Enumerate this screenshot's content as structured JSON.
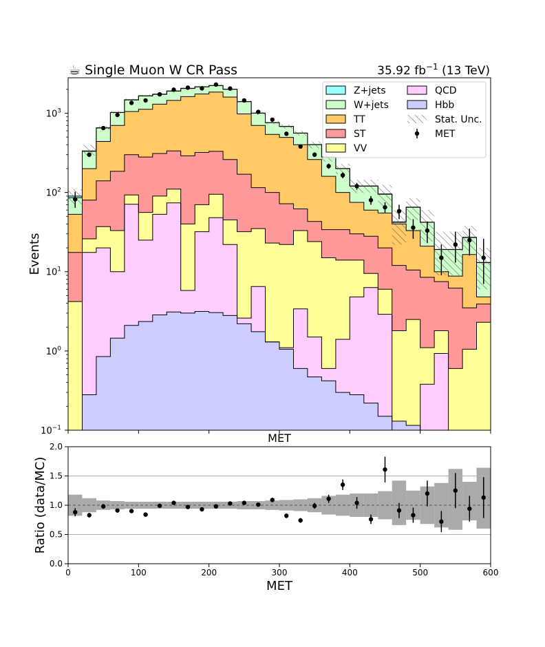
{
  "chart_data": [
    {
      "type": "area",
      "title_left": "☕ Single Muon W CR Pass",
      "title_right_prefix": "35.92 fb",
      "title_right_sup": "−1",
      "title_right_suffix": " (13 TeV)",
      "xlabel": "MET",
      "ylabel": "Events",
      "yscale": "log",
      "ylim": [
        0.1,
        2800
      ],
      "xlim": [
        0,
        600
      ],
      "y_tick_labels": [
        {
          "mantissa": "10",
          "exp": "−1"
        },
        {
          "mantissa": "10",
          "exp": "0"
        },
        {
          "mantissa": "10",
          "exp": "1"
        },
        {
          "mantissa": "10",
          "exp": "2"
        },
        {
          "mantissa": "10",
          "exp": "3"
        }
      ],
      "bin_edges": [
        0,
        20,
        40,
        60,
        80,
        100,
        120,
        140,
        160,
        180,
        200,
        220,
        240,
        260,
        280,
        300,
        320,
        340,
        360,
        380,
        400,
        420,
        440,
        460,
        480,
        500,
        520,
        540,
        560,
        580,
        600
      ],
      "stack_order": [
        "Hbb",
        "QCD",
        "VV",
        "ST",
        "TT",
        "W+jets",
        "Z+jets"
      ],
      "series": [
        {
          "name": "Hbb",
          "color": "#ccccff",
          "values": [
            0.1,
            0.28,
            0.85,
            1.45,
            2.1,
            2.35,
            2.85,
            3.1,
            3.0,
            3.15,
            3.05,
            2.8,
            2.2,
            1.75,
            1.3,
            1.05,
            0.6,
            0.47,
            0.42,
            0.3,
            0.28,
            0.22,
            0.15,
            0.13,
            0.115,
            0.1,
            0.1,
            0.1,
            0.1,
            0.1
          ]
        },
        {
          "name": "QCD",
          "color": "#ffccff",
          "values": [
            0.1,
            17.5,
            20,
            10,
            71,
            25,
            53,
            74,
            5.8,
            32,
            48,
            22,
            2.6,
            6.5,
            1.3,
            1.1,
            3.4,
            1.5,
            0.6,
            1.4,
            4.8,
            6.3,
            2.9,
            0.1,
            0.1,
            0.38,
            0.93,
            0.1,
            0.1,
            0.1
          ]
        },
        {
          "name": "VV",
          "color": "#ffff99",
          "values": [
            4.2,
            26,
            37,
            33,
            93,
            56,
            90,
            110,
            40,
            70,
            95,
            45,
            32,
            35,
            23,
            22,
            33,
            24,
            15,
            14,
            14,
            9.5,
            6,
            1.8,
            2.5,
            1.1,
            1.8,
            0.6,
            1.05,
            2.3
          ]
        },
        {
          "name": "ST",
          "color": "#ff9999",
          "values": [
            17.5,
            80,
            140,
            185,
            300,
            280,
            310,
            335,
            290,
            320,
            330,
            260,
            170,
            115,
            100,
            72,
            62,
            43,
            34,
            34,
            30,
            28,
            20,
            12,
            10.5,
            8.5,
            7.5,
            6.2,
            3.5,
            3.9
          ]
        },
        {
          "name": "TT",
          "color": "#ffc966",
          "values": [
            53,
            200,
            440,
            700,
            1050,
            1120,
            1300,
            1450,
            1620,
            1750,
            1850,
            1600,
            980,
            700,
            540,
            495,
            400,
            260,
            160,
            100,
            75,
            60,
            55,
            40,
            33,
            21,
            10,
            8.8,
            16.5,
            4.8
          ]
        },
        {
          "name": "W+jets",
          "color": "#ccffcc",
          "values": [
            86,
            330,
            650,
            1020,
            1470,
            1650,
            1730,
            1900,
            2050,
            2150,
            2230,
            2000,
            1400,
            1000,
            760,
            680,
            560,
            400,
            280,
            200,
            120,
            120,
            95,
            42,
            65,
            42,
            19,
            19,
            27,
            13
          ]
        },
        {
          "name": "Z+jets",
          "color": "#99ffff",
          "values": [
            90,
            335,
            655,
            1025,
            1480,
            1660,
            1740,
            1910,
            2060,
            2160,
            2240,
            2010,
            1405,
            1003,
            762,
            682,
            562,
            402,
            281,
            201,
            121,
            121,
            96,
            42.5,
            65.3,
            42.2,
            19.1,
            19.1,
            27.2,
            13.1
          ]
        }
      ],
      "uncertainty_band": {
        "name": "Stat. Unc.",
        "up": [
          110,
          400,
          690,
          1060,
          1520,
          1700,
          1780,
          1950,
          2110,
          2210,
          2290,
          2060,
          1450,
          1040,
          800,
          720,
          600,
          440,
          315,
          230,
          145,
          145,
          125,
          60,
          85,
          60,
          32,
          32,
          38,
          20
        ],
        "down": [
          70,
          290,
          620,
          990,
          1440,
          1620,
          1700,
          1870,
          2010,
          2110,
          2190,
          1960,
          1360,
          960,
          725,
          640,
          520,
          360,
          245,
          170,
          98,
          100,
          65,
          22,
          45,
          24,
          9,
          9,
          18,
          6
        ]
      },
      "data": {
        "name": "MET",
        "x": [
          10,
          30,
          50,
          70,
          90,
          110,
          130,
          150,
          170,
          190,
          210,
          230,
          250,
          270,
          290,
          310,
          330,
          350,
          370,
          390,
          410,
          430,
          450,
          470,
          490,
          510,
          530,
          550,
          570,
          590
        ],
        "y": [
          82,
          300,
          650,
          950,
          1350,
          1450,
          1730,
          1980,
          2100,
          2060,
          2300,
          2050,
          1450,
          1040,
          830,
          550,
          380,
          300,
          215,
          165,
          120,
          80,
          65,
          58,
          36,
          33,
          15,
          22,
          25,
          15
        ],
        "err_low": [
          18,
          20,
          28,
          34,
          40,
          40,
          44,
          48,
          50,
          48,
          52,
          48,
          40,
          34,
          30,
          24,
          20,
          18,
          16,
          14,
          12,
          10,
          10,
          12,
          10,
          10,
          6,
          9,
          9,
          8
        ],
        "err_high": [
          20,
          20,
          28,
          34,
          40,
          40,
          44,
          48,
          50,
          48,
          52,
          48,
          40,
          34,
          30,
          24,
          20,
          18,
          16,
          14,
          12,
          10,
          10,
          12,
          10,
          10,
          7,
          10,
          10,
          11
        ]
      },
      "legend_position": "upper-right",
      "legend_columns": [
        [
          "Z+jets",
          "W+jets",
          "TT",
          "ST",
          "VV"
        ],
        [
          "QCD",
          "Hbb",
          "Stat. Unc.",
          "MET"
        ]
      ]
    },
    {
      "type": "scatter",
      "xlabel": "MET",
      "ylabel": "Ratio (data/MC)",
      "xlim": [
        0,
        600
      ],
      "ylim": [
        0.0,
        2.0
      ],
      "x_ticks": [
        0,
        100,
        200,
        300,
        400,
        500,
        600
      ],
      "x_tick_labels": [
        "0",
        "100",
        "200",
        "300",
        "400",
        "500",
        "600"
      ],
      "y_ticks": [
        0.0,
        0.5,
        1.0,
        1.5,
        2.0
      ],
      "y_tick_labels": [
        "0.0",
        "0.5",
        "1.0",
        "1.5",
        "2.0"
      ],
      "grid_y": [
        0.5,
        1.0,
        1.5
      ],
      "reference_line": 1.0,
      "band_edges": [
        0,
        20,
        40,
        60,
        80,
        100,
        120,
        140,
        160,
        180,
        200,
        220,
        240,
        260,
        280,
        300,
        320,
        340,
        360,
        380,
        400,
        420,
        440,
        460,
        480,
        500,
        520,
        540,
        560,
        580,
        600
      ],
      "band_up": [
        1.18,
        1.12,
        1.08,
        1.07,
        1.06,
        1.06,
        1.06,
        1.06,
        1.06,
        1.06,
        1.06,
        1.06,
        1.07,
        1.07,
        1.08,
        1.09,
        1.1,
        1.12,
        1.16,
        1.18,
        1.2,
        1.2,
        1.24,
        1.42,
        1.25,
        1.32,
        1.38,
        1.62,
        1.4,
        1.64
      ],
      "band_down": [
        0.82,
        0.88,
        0.92,
        0.93,
        0.94,
        0.94,
        0.94,
        0.94,
        0.94,
        0.94,
        0.94,
        0.94,
        0.93,
        0.93,
        0.92,
        0.91,
        0.9,
        0.88,
        0.84,
        0.82,
        0.8,
        0.8,
        0.76,
        0.66,
        0.75,
        0.68,
        0.62,
        0.58,
        0.74,
        0.6
      ],
      "data": {
        "x": [
          10,
          30,
          50,
          70,
          90,
          110,
          130,
          150,
          170,
          190,
          210,
          230,
          250,
          270,
          290,
          310,
          330,
          350,
          370,
          390,
          410,
          430,
          450,
          470,
          490,
          510,
          530,
          550,
          570,
          590
        ],
        "y": [
          0.88,
          0.83,
          0.98,
          0.91,
          0.9,
          0.84,
          0.99,
          1.04,
          0.97,
          0.93,
          0.98,
          1.03,
          1.04,
          1.01,
          1.09,
          0.82,
          0.74,
          0.99,
          1.11,
          1.35,
          1.04,
          0.76,
          1.61,
          0.91,
          0.83,
          1.2,
          0.72,
          1.25,
          0.94,
          1.13
        ],
        "err": [
          0.07,
          0.04,
          0.04,
          0.03,
          0.03,
          0.03,
          0.03,
          0.03,
          0.03,
          0.03,
          0.03,
          0.03,
          0.03,
          0.03,
          0.04,
          0.04,
          0.04,
          0.05,
          0.07,
          0.09,
          0.1,
          0.08,
          0.22,
          0.13,
          0.13,
          0.22,
          0.18,
          0.3,
          0.22,
          0.35
        ]
      }
    }
  ]
}
